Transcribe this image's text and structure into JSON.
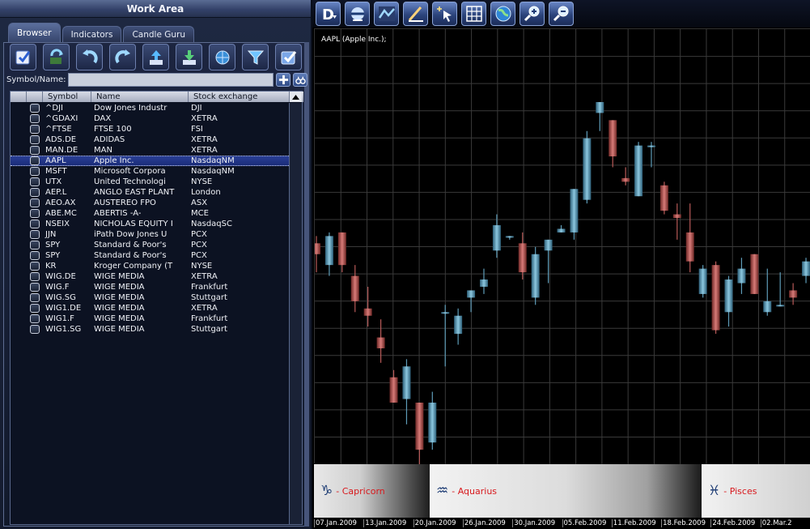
{
  "work_area": {
    "title": "Work Area",
    "tabs": [
      {
        "label": "Browser",
        "active": true
      },
      {
        "label": "Indicators",
        "active": false
      },
      {
        "label": "Candle Guru",
        "active": false
      }
    ],
    "toolbar_icons": [
      "portfolio-check-icon",
      "refresh-data-icon",
      "undo-arrow-icon",
      "redo-arrow-icon",
      "upload-icon",
      "download-icon",
      "globe-search-icon",
      "filter-icon",
      "select-all-icon"
    ],
    "search": {
      "label": "Symbol/Name:",
      "value": "",
      "placeholder": ""
    },
    "table": {
      "columns": [
        "",
        "",
        "Symbol",
        "Name",
        "Stock exchange"
      ],
      "selected_index": 5,
      "rows": [
        {
          "symbol": "^DJI",
          "name": "Dow Jones Industr",
          "exchange": "DJI"
        },
        {
          "symbol": "^GDAXI",
          "name": "DAX",
          "exchange": "XETRA"
        },
        {
          "symbol": "^FTSE",
          "name": "FTSE 100",
          "exchange": "FSI"
        },
        {
          "symbol": "ADS.DE",
          "name": "ADIDAS",
          "exchange": "XETRA"
        },
        {
          "symbol": "MAN.DE",
          "name": "MAN",
          "exchange": "XETRA"
        },
        {
          "symbol": "AAPL",
          "name": "Apple Inc.",
          "exchange": "NasdaqNM"
        },
        {
          "symbol": "MSFT",
          "name": "Microsoft Corpora",
          "exchange": "NasdaqNM"
        },
        {
          "symbol": "UTX",
          "name": "United Technologi",
          "exchange": "NYSE"
        },
        {
          "symbol": "AEP.L",
          "name": "ANGLO EAST PLANT",
          "exchange": "London"
        },
        {
          "symbol": "AEO.AX",
          "name": "AUSTEREO FPO",
          "exchange": "ASX"
        },
        {
          "symbol": "ABE.MC",
          "name": "ABERTIS -A-",
          "exchange": "MCE"
        },
        {
          "symbol": "NSEIX",
          "name": "NICHOLAS EQUITY I",
          "exchange": "NasdaqSC"
        },
        {
          "symbol": "JJN",
          "name": "iPath Dow Jones U",
          "exchange": "PCX"
        },
        {
          "symbol": "SPY",
          "name": "Standard & Poor's",
          "exchange": "PCX"
        },
        {
          "symbol": "SPY",
          "name": "Standard & Poor's",
          "exchange": "PCX"
        },
        {
          "symbol": "KR",
          "name": "Kroger Company (T",
          "exchange": "NYSE"
        },
        {
          "symbol": "WIG.DE",
          "name": "WIGE MEDIA",
          "exchange": "XETRA"
        },
        {
          "symbol": "WIG.F",
          "name": "WIGE MEDIA",
          "exchange": "Frankfurt"
        },
        {
          "symbol": "WIG.SG",
          "name": "WIGE MEDIA",
          "exchange": "Stuttgart"
        },
        {
          "symbol": "WIG1.DE",
          "name": "WIGE MEDIA",
          "exchange": "XETRA"
        },
        {
          "symbol": "WIG1.F",
          "name": "WIGE MEDIA",
          "exchange": "Frankfurt"
        },
        {
          "symbol": "WIG1.SG",
          "name": "WIGE MEDIA",
          "exchange": "Stuttgart"
        }
      ]
    }
  },
  "chart_toolbar_icons": [
    "d-display-mode-icon",
    "line-tool-icon",
    "chart-line-icon",
    "draw-pen-icon",
    "cursor-spark-icon",
    "grid-icon",
    "globe-icon",
    "zoom-in-icon",
    "zoom-out-icon"
  ],
  "chart": {
    "title": "AAPL (Apple Inc.);",
    "colors": {
      "up": "#5e9cb8",
      "down": "#b85a58",
      "grid": "#3a3a3a"
    },
    "zodiac": [
      {
        "glyph": "♑",
        "label": " - Capricorn"
      },
      {
        "glyph": "♒",
        "label": " - Aquarius"
      },
      {
        "glyph": "♓",
        "label": " - Pisces"
      }
    ],
    "dates": [
      "07.Jan.2009",
      "13.Jan.2009",
      "20.Jan.2009",
      "26.Jan.2009",
      "30.Jan.2009",
      "05.Feb.2009",
      "11.Feb.2009",
      "18.Feb.2009",
      "24.Feb.2009",
      "02.Mar.2"
    ]
  },
  "chart_data": {
    "type": "candlestick",
    "title": "AAPL (Apple Inc.);",
    "x_tick_labels": [
      "07.Jan.2009",
      "13.Jan.2009",
      "20.Jan.2009",
      "26.Jan.2009",
      "30.Jan.2009",
      "05.Feb.2009",
      "11.Feb.2009",
      "18.Feb.2009",
      "24.Feb.2009",
      "02.Mar.2"
    ],
    "ylim": [
      0,
      100
    ],
    "grid": true,
    "candles": [
      {
        "o": 61,
        "h": 63,
        "l": 53,
        "c": 58
      },
      {
        "o": 55,
        "h": 64,
        "l": 52,
        "c": 63
      },
      {
        "o": 64,
        "h": 64,
        "l": 53,
        "c": 55
      },
      {
        "o": 52,
        "h": 55,
        "l": 42,
        "c": 45
      },
      {
        "o": 43,
        "h": 49,
        "l": 38,
        "c": 41
      },
      {
        "o": 35,
        "h": 40,
        "l": 28,
        "c": 32
      },
      {
        "o": 24,
        "h": 26,
        "l": 17,
        "c": 17
      },
      {
        "o": 18,
        "h": 29,
        "l": 11,
        "c": 27
      },
      {
        "o": 17,
        "h": 17,
        "l": 0,
        "c": 4
      },
      {
        "o": 6,
        "h": 20,
        "l": 4,
        "c": 17
      },
      {
        "o": 42,
        "h": 44,
        "l": 27,
        "c": 42
      },
      {
        "o": 36,
        "h": 43,
        "l": 33,
        "c": 41
      },
      {
        "o": 46,
        "h": 48,
        "l": 42,
        "c": 48
      },
      {
        "o": 49,
        "h": 54,
        "l": 47,
        "c": 51
      },
      {
        "o": 59,
        "h": 69,
        "l": 57,
        "c": 66
      },
      {
        "o": 63,
        "h": 63,
        "l": 62,
        "c": 63
      },
      {
        "o": 61,
        "h": 64,
        "l": 51,
        "c": 53
      },
      {
        "o": 46,
        "h": 60,
        "l": 44,
        "c": 58
      },
      {
        "o": 59,
        "h": 62,
        "l": 50,
        "c": 62
      },
      {
        "o": 64,
        "h": 66,
        "l": 64,
        "c": 65
      },
      {
        "o": 64,
        "h": 76,
        "l": 62,
        "c": 76
      },
      {
        "o": 73,
        "h": 92,
        "l": 72,
        "c": 90
      },
      {
        "o": 97,
        "h": 100,
        "l": 92,
        "c": 100
      },
      {
        "o": 95,
        "h": 95,
        "l": 82,
        "c": 85
      },
      {
        "o": 79,
        "h": 82,
        "l": 77,
        "c": 78
      },
      {
        "o": 74,
        "h": 89,
        "l": 74,
        "c": 88
      },
      {
        "o": 88,
        "h": 89,
        "l": 82,
        "c": 88
      },
      {
        "o": 77,
        "h": 78,
        "l": 69,
        "c": 70
      },
      {
        "o": 69,
        "h": 72,
        "l": 62,
        "c": 68
      },
      {
        "o": 64,
        "h": 72,
        "l": 53,
        "c": 56
      },
      {
        "o": 47,
        "h": 55,
        "l": 46,
        "c": 54
      },
      {
        "o": 55,
        "h": 56,
        "l": 36,
        "c": 37
      },
      {
        "o": 42,
        "h": 52,
        "l": 38,
        "c": 51
      },
      {
        "o": 50,
        "h": 57,
        "l": 47,
        "c": 54
      },
      {
        "o": 58,
        "h": 58,
        "l": 47,
        "c": 47
      },
      {
        "o": 42,
        "h": 54,
        "l": 41,
        "c": 45
      },
      {
        "o": 44,
        "h": 53,
        "l": 44,
        "c": 44
      },
      {
        "o": 48,
        "h": 50,
        "l": 44,
        "c": 46
      },
      {
        "o": 52,
        "h": 57,
        "l": 50,
        "c": 56
      }
    ]
  }
}
